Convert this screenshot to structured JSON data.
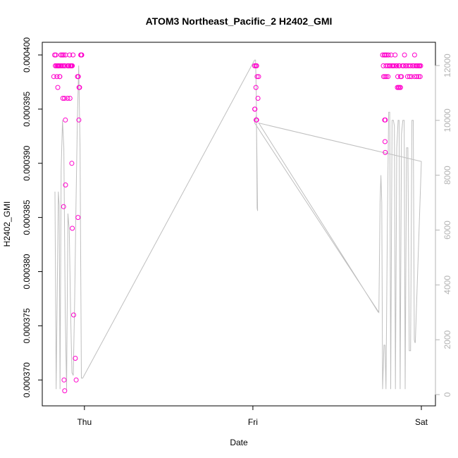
{
  "chart_data": {
    "type": "scatter",
    "title": "ATOM3 Northeast_Pacific_2 H2402_GMI",
    "xlabel": "Date",
    "ylabel": "H2402_GMI",
    "x_ticks": [
      "Thu",
      "Fri",
      "Sat"
    ],
    "x_range_days": [
      -0.2,
      2.0
    ],
    "ylim": [
      0.000368,
      0.0004
    ],
    "y_ticks": [
      "0.000370",
      "0.000375",
      "0.000380",
      "0.000385",
      "0.000390",
      "0.000395",
      "0.000400"
    ],
    "y2lim": [
      0,
      12000
    ],
    "y2_ticks": [
      "0",
      "2000",
      "4000",
      "6000",
      "8000",
      "10000",
      "12000"
    ],
    "colors": {
      "points": "#ff00cc",
      "altitude_line": "#bfbfbf",
      "axis": "#000000",
      "right_axis": "#b3b3b3"
    },
    "series": [
      {
        "kind": "points",
        "values": [
          [
            -0.177,
            0.0004
          ],
          [
            -0.173,
            0.000399
          ],
          [
            -0.17,
            0.0004
          ],
          [
            -0.166,
            0.000399
          ],
          [
            -0.163,
            0.000398
          ],
          [
            -0.16,
            0.000399
          ],
          [
            -0.157,
            0.000399
          ],
          [
            -0.154,
            0.000399
          ],
          [
            -0.15,
            0.000399
          ],
          [
            -0.147,
            0.000398
          ],
          [
            -0.143,
            0.000399
          ],
          [
            -0.14,
            0.0004
          ],
          [
            -0.136,
            0.000399
          ],
          [
            -0.132,
            0.0004
          ],
          [
            -0.128,
            0.000399
          ],
          [
            -0.124,
            0.0004
          ],
          [
            -0.12,
            0.000399
          ],
          [
            -0.116,
            0.000399
          ],
          [
            -0.112,
            0.0004
          ],
          [
            -0.1,
            0.000399
          ],
          [
            -0.096,
            0.000399
          ],
          [
            -0.092,
            0.000399
          ],
          [
            -0.088,
            0.0004
          ],
          [
            -0.084,
            0.000399
          ],
          [
            -0.08,
            0.000399
          ],
          [
            -0.076,
            0.000399
          ],
          [
            -0.072,
            0.000399
          ],
          [
            -0.068,
            0.0004
          ],
          [
            -0.182,
            0.000398
          ],
          [
            -0.158,
            0.000397
          ],
          [
            -0.146,
            0.000398
          ],
          [
            -0.128,
            0.000396
          ],
          [
            -0.118,
            0.000396
          ],
          [
            -0.1,
            0.000396
          ],
          [
            -0.113,
            0.000394
          ],
          [
            -0.041,
            0.000398
          ],
          [
            -0.036,
            0.000398
          ],
          [
            -0.032,
            0.000397
          ],
          [
            -0.029,
            0.000397
          ],
          [
            -0.022,
            0.0004
          ],
          [
            -0.019,
            0.0004
          ],
          [
            -0.016,
            0.0004
          ],
          [
            -0.033,
            0.000394
          ],
          [
            -0.086,
            0.000396
          ],
          [
            -0.075,
            0.00039
          ],
          [
            -0.112,
            0.000388
          ],
          [
            -0.124,
            0.000386
          ],
          [
            -0.072,
            0.000384
          ],
          [
            -0.038,
            0.000385
          ],
          [
            -0.064,
            0.000376
          ],
          [
            -0.054,
            0.000372
          ],
          [
            -0.049,
            0.00037
          ],
          [
            -0.121,
            0.00037
          ],
          [
            -0.117,
            0.000369
          ],
          [
            1.01,
            0.000399
          ],
          [
            1.017,
            0.000399
          ],
          [
            1.022,
            0.000399
          ],
          [
            1.025,
            0.000398
          ],
          [
            1.034,
            0.000398
          ],
          [
            1.03,
            0.000396
          ],
          [
            1.018,
            0.000397
          ],
          [
            1.011,
            0.000395
          ],
          [
            1.012,
            0.000395
          ],
          [
            1.019,
            0.000394
          ],
          [
            1.022,
            0.000394
          ],
          [
            1.77,
            0.0004
          ],
          [
            1.774,
            0.000399
          ],
          [
            1.78,
            0.0004
          ],
          [
            1.786,
            0.0004
          ],
          [
            1.79,
            0.000399
          ],
          [
            1.794,
            0.0004
          ],
          [
            1.8,
            0.000399
          ],
          [
            1.805,
            0.0004
          ],
          [
            1.81,
            0.000399
          ],
          [
            1.815,
            0.000399
          ],
          [
            1.82,
            0.0004
          ],
          [
            1.826,
            0.000399
          ],
          [
            1.832,
            0.000399
          ],
          [
            1.838,
            0.000399
          ],
          [
            1.844,
            0.0004
          ],
          [
            1.85,
            0.000399
          ],
          [
            1.855,
            0.000399
          ],
          [
            1.86,
            0.000398
          ],
          [
            1.866,
            0.000399
          ],
          [
            1.87,
            0.000399
          ],
          [
            1.876,
            0.000398
          ],
          [
            1.882,
            0.000398
          ],
          [
            1.888,
            0.000399
          ],
          [
            1.894,
            0.000399
          ],
          [
            1.9,
            0.0004
          ],
          [
            1.906,
            0.000399
          ],
          [
            1.912,
            0.000399
          ],
          [
            1.918,
            0.000398
          ],
          [
            1.924,
            0.000399
          ],
          [
            1.93,
            0.000398
          ],
          [
            1.936,
            0.000399
          ],
          [
            1.942,
            0.000398
          ],
          [
            1.948,
            0.000399
          ],
          [
            1.954,
            0.000399
          ],
          [
            1.96,
            0.0004
          ],
          [
            1.966,
            0.000399
          ],
          [
            1.972,
            0.000399
          ],
          [
            1.978,
            0.000399
          ],
          [
            1.984,
            0.000398
          ],
          [
            1.99,
            0.000399
          ],
          [
            1.996,
            0.000399
          ],
          [
            1.776,
            0.000398
          ],
          [
            1.784,
            0.000398
          ],
          [
            1.792,
            0.000398
          ],
          [
            1.802,
            0.000398
          ],
          [
            1.858,
            0.000397
          ],
          [
            1.864,
            0.000397
          ],
          [
            1.87,
            0.000397
          ],
          [
            1.876,
            0.000397
          ],
          [
            1.96,
            0.000398
          ],
          [
            1.973,
            0.000398
          ],
          [
            1.985,
            0.000399
          ],
          [
            1.993,
            0.000398
          ],
          [
            1.782,
            0.000394
          ],
          [
            1.786,
            0.000394
          ],
          [
            1.784,
            0.000392
          ],
          [
            1.786,
            0.000391
          ]
        ]
      },
      {
        "kind": "altitude_line",
        "axis": "right",
        "values": [
          [
            -0.175,
            7400
          ],
          [
            -0.168,
            200
          ],
          [
            -0.155,
            7400
          ],
          [
            -0.15,
            6900
          ],
          [
            -0.145,
            200
          ],
          [
            -0.138,
            8200
          ],
          [
            -0.13,
            10000
          ],
          [
            -0.122,
            9000
          ],
          [
            -0.114,
            3000
          ],
          [
            -0.106,
            200
          ],
          [
            -0.098,
            6600
          ],
          [
            -0.09,
            6000
          ],
          [
            -0.082,
            3000
          ],
          [
            -0.074,
            800
          ],
          [
            -0.066,
            700
          ],
          [
            -0.058,
            3500
          ],
          [
            -0.05,
            7000
          ],
          [
            -0.042,
            10000
          ],
          [
            -0.034,
            12000
          ],
          [
            -0.026,
            9000
          ],
          [
            -0.018,
            600
          ],
          [
            -0.01,
            600
          ],
          [
            1.01,
            12200
          ],
          [
            1.016,
            12200
          ],
          [
            1.02,
            11000
          ],
          [
            1.025,
            6800
          ],
          [
            1.028,
            6700
          ],
          [
            1.021,
            10200
          ],
          [
            1.011,
            9900
          ],
          [
            1.748,
            3000
          ],
          [
            1.755,
            7000
          ],
          [
            1.76,
            8000
          ],
          [
            1.765,
            7000
          ],
          [
            1.77,
            200
          ],
          [
            1.778,
            1800
          ],
          [
            1.784,
            1800
          ],
          [
            1.79,
            200
          ],
          [
            1.798,
            6000
          ],
          [
            1.806,
            10300
          ],
          [
            1.812,
            10300
          ],
          [
            1.818,
            200
          ],
          [
            1.826,
            10000
          ],
          [
            1.834,
            10000
          ],
          [
            1.84,
            9800
          ],
          [
            1.846,
            200
          ],
          [
            1.854,
            9000
          ],
          [
            1.862,
            10000
          ],
          [
            1.868,
            10000
          ],
          [
            1.874,
            200
          ],
          [
            1.882,
            9500
          ],
          [
            1.89,
            10000
          ],
          [
            1.898,
            10000
          ],
          [
            1.904,
            200
          ],
          [
            1.912,
            9000
          ],
          [
            1.92,
            9000
          ],
          [
            1.928,
            1600
          ],
          [
            1.936,
            1600
          ],
          [
            1.944,
            10000
          ],
          [
            1.952,
            10000
          ],
          [
            1.958,
            2000
          ],
          [
            1.962,
            1900
          ],
          [
            1.964,
            1900
          ],
          [
            2.0,
            8500
          ],
          [
            1.035,
            9900
          ],
          [
            1.745,
            3000
          ]
        ]
      }
    ]
  }
}
